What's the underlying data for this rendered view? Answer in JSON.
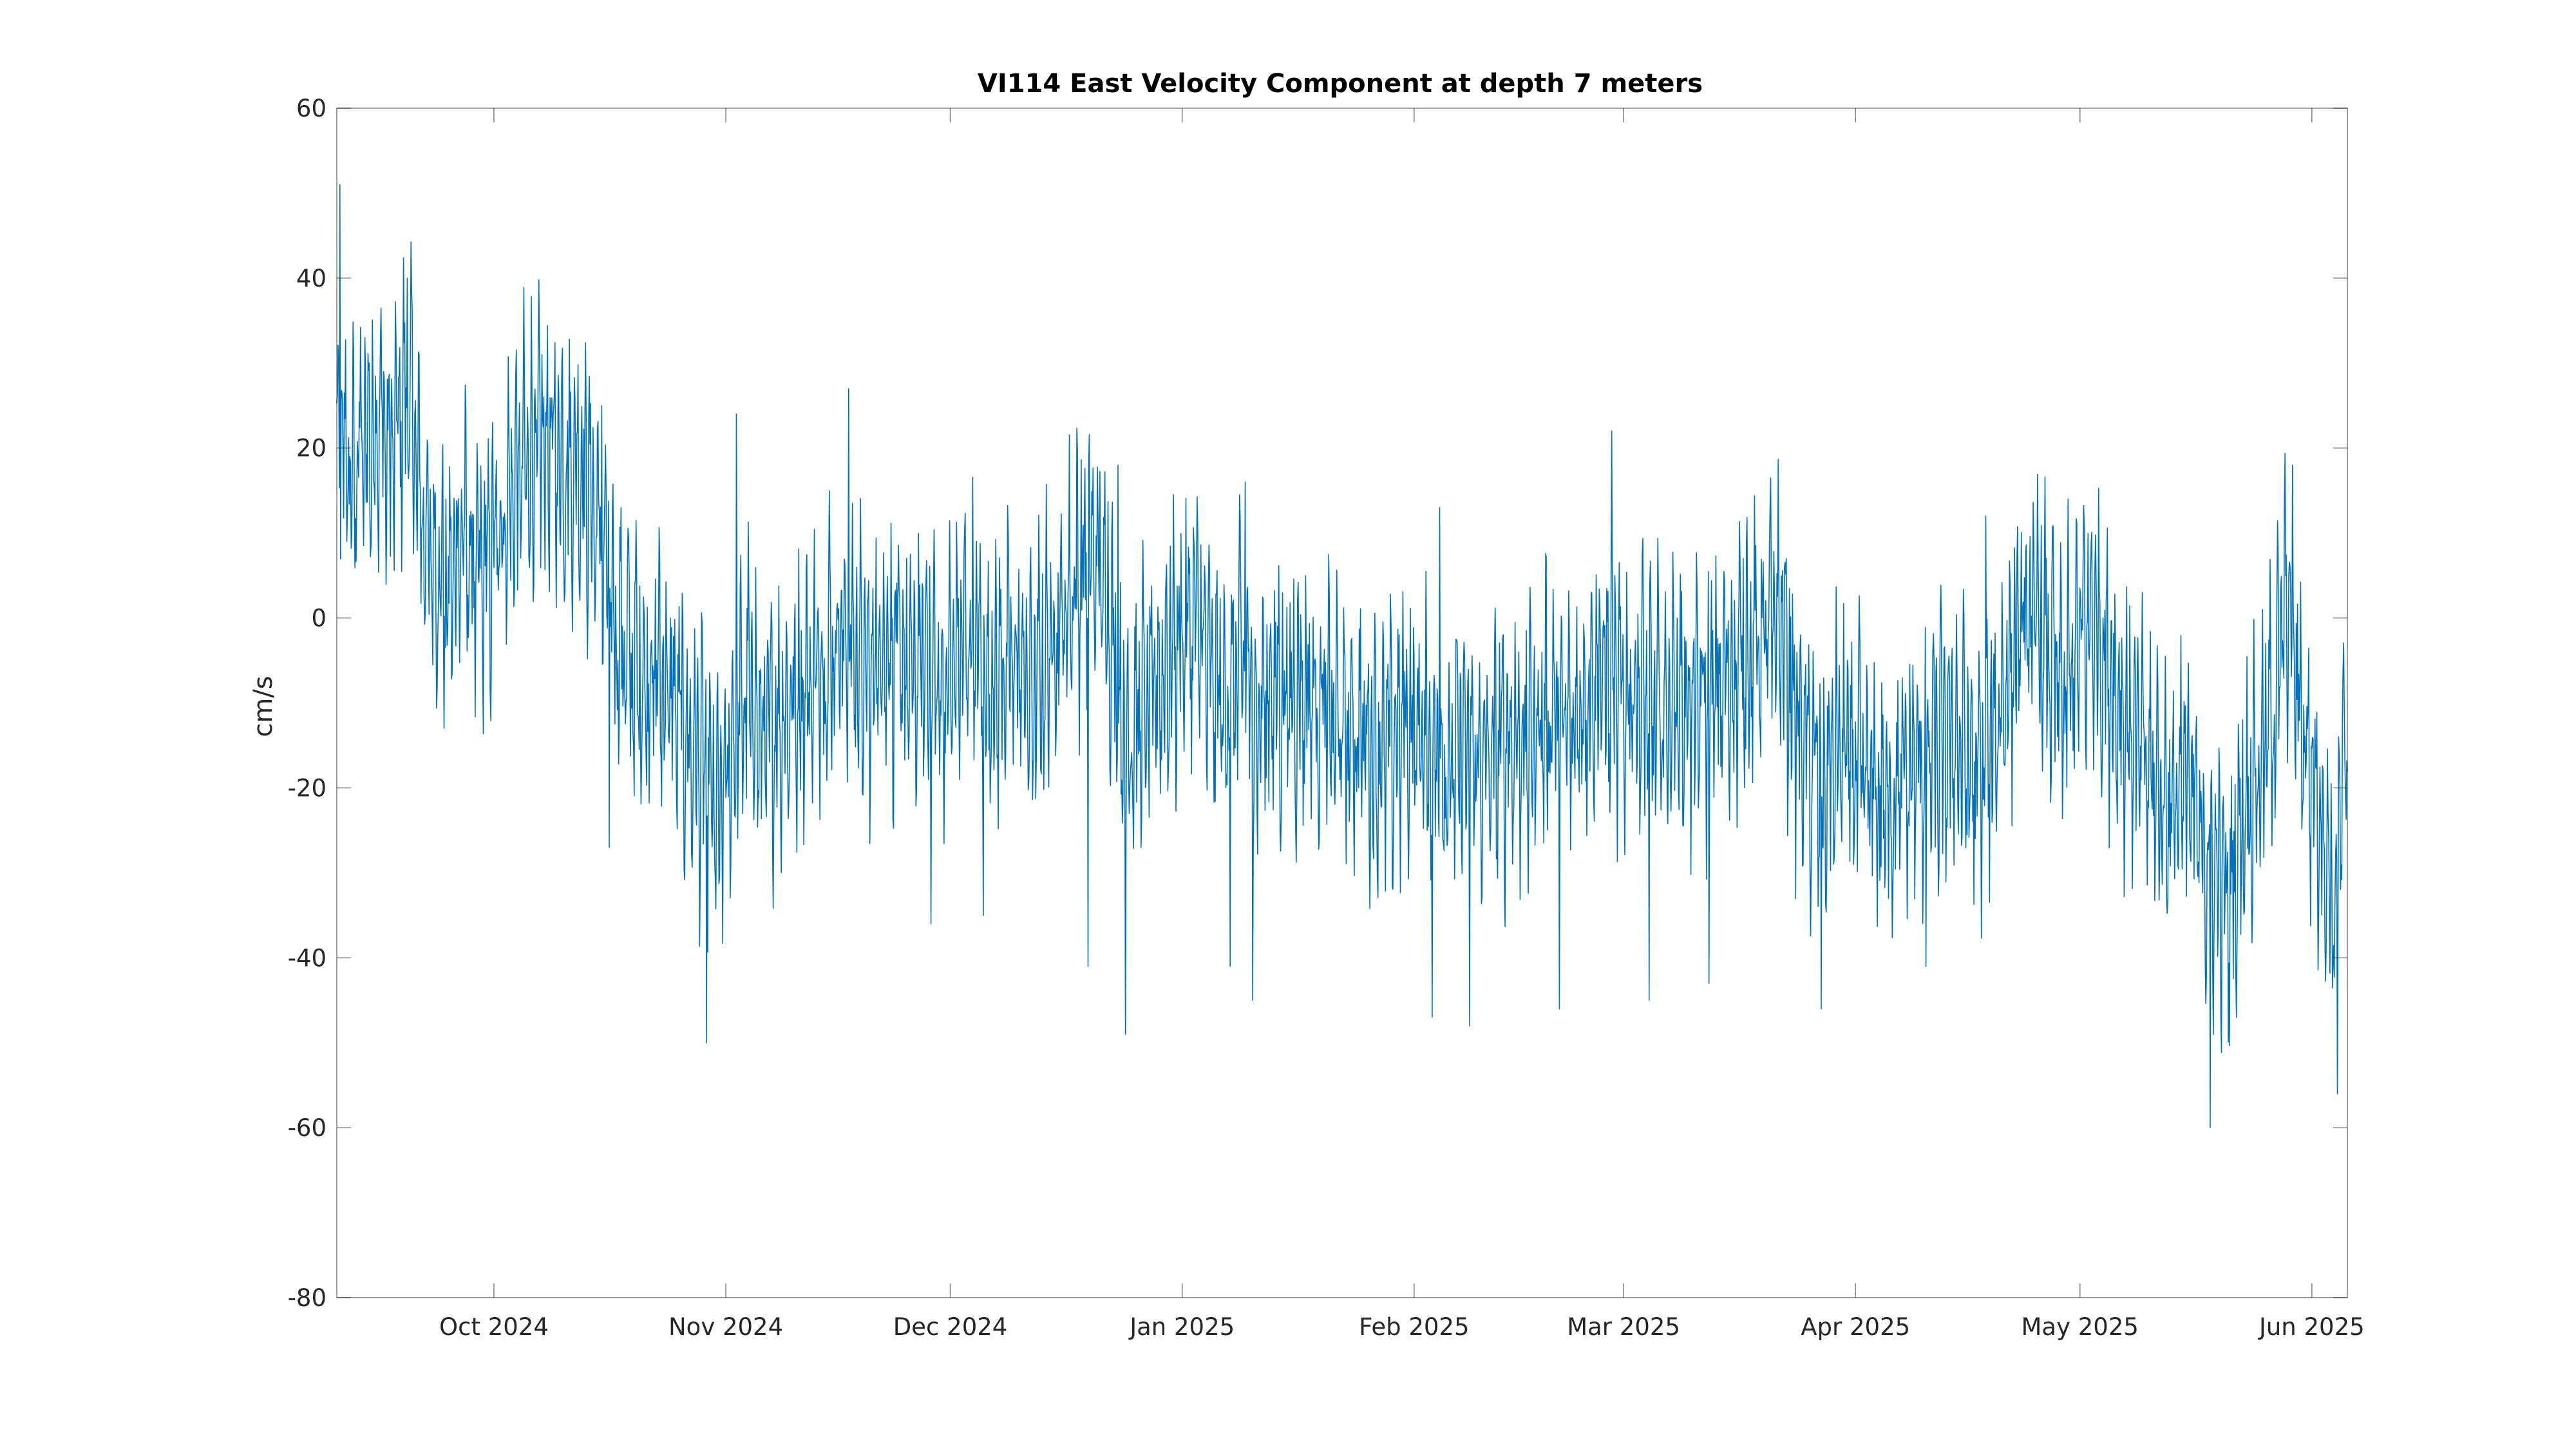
{
  "chart_data": {
    "type": "line",
    "title": "VI114 East Velocity Component at depth 7 meters",
    "xlabel": "",
    "ylabel": "cm/s",
    "xlim": [
      "2024-09-10",
      "2025-06-05"
    ],
    "ylim": [
      -80,
      60
    ],
    "yticks": [
      60,
      40,
      20,
      0,
      -20,
      -40,
      -60,
      -80
    ],
    "xticks": [
      {
        "date": "2024-10-01",
        "label": "Oct 2024"
      },
      {
        "date": "2024-11-01",
        "label": "Nov 2024"
      },
      {
        "date": "2024-12-01",
        "label": "Dec 2024"
      },
      {
        "date": "2025-01-01",
        "label": "Jan 2025"
      },
      {
        "date": "2025-02-01",
        "label": "Feb 2025"
      },
      {
        "date": "2025-03-01",
        "label": "Mar 2025"
      },
      {
        "date": "2025-04-01",
        "label": "Apr 2025"
      },
      {
        "date": "2025-05-01",
        "label": "May 2025"
      },
      {
        "date": "2025-06-01",
        "label": "Jun 2025"
      }
    ],
    "grid": false,
    "legend": "none",
    "series": [
      {
        "color": "#0072BD",
        "points": [
          [
            "2024-09-10",
            18
          ],
          [
            "2024-09-11",
            20
          ],
          [
            "2024-09-12",
            15
          ],
          [
            "2024-09-13",
            20
          ],
          [
            "2024-09-14",
            21
          ],
          [
            "2024-09-15",
            22
          ],
          [
            "2024-09-16",
            24
          ],
          [
            "2024-09-17",
            18
          ],
          [
            "2024-09-18",
            22
          ],
          [
            "2024-09-19",
            26
          ],
          [
            "2024-09-20",
            25
          ],
          [
            "2024-09-21",
            15
          ],
          [
            "2024-09-22",
            9
          ],
          [
            "2024-09-23",
            7
          ],
          [
            "2024-09-24",
            4
          ],
          [
            "2024-09-25",
            2
          ],
          [
            "2024-09-26",
            8
          ],
          [
            "2024-09-27",
            10
          ],
          [
            "2024-09-28",
            6
          ],
          [
            "2024-09-29",
            4
          ],
          [
            "2024-10-01",
            8
          ],
          [
            "2024-10-03",
            14
          ],
          [
            "2024-10-05",
            18
          ],
          [
            "2024-10-07",
            19
          ],
          [
            "2024-10-09",
            20
          ],
          [
            "2024-10-11",
            18
          ],
          [
            "2024-10-13",
            18
          ],
          [
            "2024-10-15",
            10
          ],
          [
            "2024-10-17",
            0
          ],
          [
            "2024-10-19",
            -5
          ],
          [
            "2024-10-21",
            -8
          ],
          [
            "2024-10-23",
            -6
          ],
          [
            "2024-10-25",
            -10
          ],
          [
            "2024-10-27",
            -15
          ],
          [
            "2024-10-29",
            -18
          ],
          [
            "2024-10-31",
            -25
          ],
          [
            "2024-11-02",
            -15
          ],
          [
            "2024-11-04",
            -8
          ],
          [
            "2024-11-06",
            -15
          ],
          [
            "2024-11-08",
            -12
          ],
          [
            "2024-11-10",
            -10
          ],
          [
            "2024-11-12",
            -8
          ],
          [
            "2024-11-14",
            -5
          ],
          [
            "2024-11-16",
            -2
          ],
          [
            "2024-11-18",
            -3
          ],
          [
            "2024-11-20",
            -8
          ],
          [
            "2024-11-22",
            -2
          ],
          [
            "2024-11-24",
            -5
          ],
          [
            "2024-11-26",
            -8
          ],
          [
            "2024-11-28",
            -4
          ],
          [
            "2024-11-30",
            -10
          ],
          [
            "2024-12-02",
            -4
          ],
          [
            "2024-12-04",
            -2
          ],
          [
            "2024-12-06",
            -8
          ],
          [
            "2024-12-08",
            -6
          ],
          [
            "2024-12-10",
            -5
          ],
          [
            "2024-12-12",
            -10
          ],
          [
            "2024-12-14",
            -4
          ],
          [
            "2024-12-16",
            0
          ],
          [
            "2024-12-18",
            5
          ],
          [
            "2024-12-20",
            7
          ],
          [
            "2024-12-22",
            3
          ],
          [
            "2024-12-24",
            -15
          ],
          [
            "2024-12-26",
            -12
          ],
          [
            "2024-12-28",
            -10
          ],
          [
            "2024-12-30",
            -5
          ],
          [
            "2025-01-01",
            -2
          ],
          [
            "2025-01-03",
            0
          ],
          [
            "2025-01-05",
            -8
          ],
          [
            "2025-01-07",
            -10
          ],
          [
            "2025-01-09",
            -5
          ],
          [
            "2025-01-11",
            -12
          ],
          [
            "2025-01-13",
            -8
          ],
          [
            "2025-01-15",
            -10
          ],
          [
            "2025-01-17",
            -8
          ],
          [
            "2025-01-19",
            -10
          ],
          [
            "2025-01-21",
            -12
          ],
          [
            "2025-01-23",
            -14
          ],
          [
            "2025-01-25",
            -13
          ],
          [
            "2025-01-27",
            -16
          ],
          [
            "2025-01-29",
            -15
          ],
          [
            "2025-01-31",
            -12
          ],
          [
            "2025-02-02",
            -14
          ],
          [
            "2025-02-04",
            -16
          ],
          [
            "2025-02-06",
            -18
          ],
          [
            "2025-02-08",
            -15
          ],
          [
            "2025-02-10",
            -18
          ],
          [
            "2025-02-12",
            -16
          ],
          [
            "2025-02-14",
            -14
          ],
          [
            "2025-02-16",
            -15
          ],
          [
            "2025-02-18",
            -12
          ],
          [
            "2025-02-20",
            -10
          ],
          [
            "2025-02-22",
            -14
          ],
          [
            "2025-02-24",
            -8
          ],
          [
            "2025-02-26",
            -6
          ],
          [
            "2025-02-28",
            -10
          ],
          [
            "2025-03-02",
            -8
          ],
          [
            "2025-03-04",
            -10
          ],
          [
            "2025-03-06",
            -12
          ],
          [
            "2025-03-08",
            -9
          ],
          [
            "2025-03-10",
            -11
          ],
          [
            "2025-03-12",
            -10
          ],
          [
            "2025-03-14",
            -8
          ],
          [
            "2025-03-16",
            -6
          ],
          [
            "2025-03-18",
            -4
          ],
          [
            "2025-03-20",
            -2
          ],
          [
            "2025-03-22",
            0
          ],
          [
            "2025-03-24",
            -12
          ],
          [
            "2025-03-26",
            -18
          ],
          [
            "2025-03-28",
            -20
          ],
          [
            "2025-03-30",
            -15
          ],
          [
            "2025-04-01",
            -18
          ],
          [
            "2025-04-03",
            -20
          ],
          [
            "2025-04-05",
            -22
          ],
          [
            "2025-04-07",
            -20
          ],
          [
            "2025-04-09",
            -18
          ],
          [
            "2025-04-11",
            -16
          ],
          [
            "2025-04-13",
            -15
          ],
          [
            "2025-04-15",
            -14
          ],
          [
            "2025-04-17",
            -20
          ],
          [
            "2025-04-19",
            -16
          ],
          [
            "2025-04-21",
            -8
          ],
          [
            "2025-04-23",
            -2
          ],
          [
            "2025-04-25",
            0
          ],
          [
            "2025-04-27",
            -5
          ],
          [
            "2025-04-29",
            -10
          ],
          [
            "2025-05-01",
            -2
          ],
          [
            "2025-05-03",
            0
          ],
          [
            "2025-05-05",
            -6
          ],
          [
            "2025-05-07",
            -12
          ],
          [
            "2025-05-09",
            -15
          ],
          [
            "2025-05-11",
            -20
          ],
          [
            "2025-05-13",
            -22
          ],
          [
            "2025-05-15",
            -18
          ],
          [
            "2025-05-17",
            -26
          ],
          [
            "2025-05-19",
            -30
          ],
          [
            "2025-05-21",
            -34
          ],
          [
            "2025-05-23",
            -22
          ],
          [
            "2025-05-25",
            -18
          ],
          [
            "2025-05-27",
            -10
          ],
          [
            "2025-05-28",
            -2
          ],
          [
            "2025-05-29",
            2
          ],
          [
            "2025-05-30",
            -8
          ],
          [
            "2025-05-31",
            -14
          ],
          [
            "2025-06-01",
            -18
          ],
          [
            "2025-06-02",
            -22
          ],
          [
            "2025-06-03",
            -28
          ],
          [
            "2025-06-04",
            -35
          ],
          [
            "2025-06-05",
            -20
          ]
        ],
        "spikes": [
          [
            "2024-09-10",
            51
          ],
          [
            "2024-09-19",
            40
          ],
          [
            "2024-10-07",
            31
          ],
          [
            "2024-10-15",
            25
          ],
          [
            "2024-10-16",
            -27
          ],
          [
            "2024-10-29",
            -50
          ],
          [
            "2024-11-02",
            24
          ],
          [
            "2024-11-17",
            27
          ],
          [
            "2024-11-28",
            -36
          ],
          [
            "2024-12-05",
            -35
          ],
          [
            "2024-12-19",
            -41
          ],
          [
            "2024-12-23",
            18
          ],
          [
            "2024-12-24",
            -49
          ],
          [
            "2025-01-07",
            -41
          ],
          [
            "2025-01-09",
            16
          ],
          [
            "2025-01-10",
            -45
          ],
          [
            "2025-02-03",
            -47
          ],
          [
            "2025-02-04",
            13
          ],
          [
            "2025-02-08",
            -48
          ],
          [
            "2025-02-20",
            -46
          ],
          [
            "2025-02-27",
            22
          ],
          [
            "2025-03-04",
            -45
          ],
          [
            "2025-03-12",
            -43
          ],
          [
            "2025-03-17",
            9
          ],
          [
            "2025-03-27",
            -46
          ],
          [
            "2025-04-10",
            -41
          ],
          [
            "2025-04-18",
            12
          ],
          [
            "2025-04-29",
            14
          ],
          [
            "2025-05-18",
            -60
          ],
          [
            "2025-05-29",
            18
          ],
          [
            "2025-06-04",
            -56
          ]
        ]
      }
    ]
  }
}
